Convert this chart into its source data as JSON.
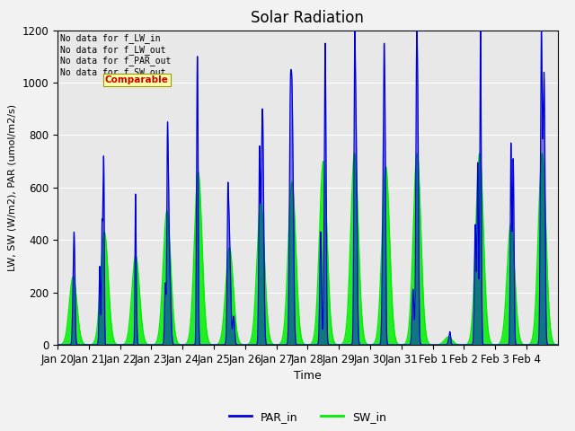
{
  "title": "Solar Radiation",
  "xlabel": "Time",
  "ylabel": "LW, SW (W/m2), PAR (umol/m2/s)",
  "ylim": [
    0,
    1200
  ],
  "yticks": [
    0,
    200,
    400,
    600,
    800,
    1000,
    1200
  ],
  "legend_labels": [
    "PAR_in",
    "SW_in"
  ],
  "par_color": "#0000dd",
  "sw_color": "#00ee00",
  "fig_bg_color": "#f2f2f2",
  "ax_bg_color": "#e8e8e8",
  "grid_color": "#ffffff",
  "annotations": [
    "No data for f_LW_in",
    "No data for f_LW_out",
    "No data for f_PAR_out",
    "No data for f_SW_out"
  ],
  "tooltip_text": "Comparable",
  "tick_labels": [
    "Jan 20",
    "Jan 21",
    "Jan 22",
    "Jan 23",
    "Jan 24",
    "Jan 25",
    "Jan 26",
    "Jan 27",
    "Jan 28",
    "Jan 29",
    "Jan 30",
    "Jan 31",
    "Feb 1",
    "Feb 2",
    "Feb 3",
    "Feb 4"
  ],
  "peak_heights_par": [
    430,
    720,
    575,
    850,
    1100,
    620,
    900,
    1050,
    1150,
    1200,
    1150,
    1200,
    50,
    1200,
    770,
    1200
  ],
  "peak_heights_sw": [
    260,
    430,
    340,
    510,
    660,
    370,
    540,
    620,
    700,
    730,
    680,
    730,
    30,
    730,
    460,
    730
  ],
  "tick_fontsize": 8.5,
  "title_fontsize": 12,
  "ylabel_fontsize": 8,
  "xlabel_fontsize": 9
}
